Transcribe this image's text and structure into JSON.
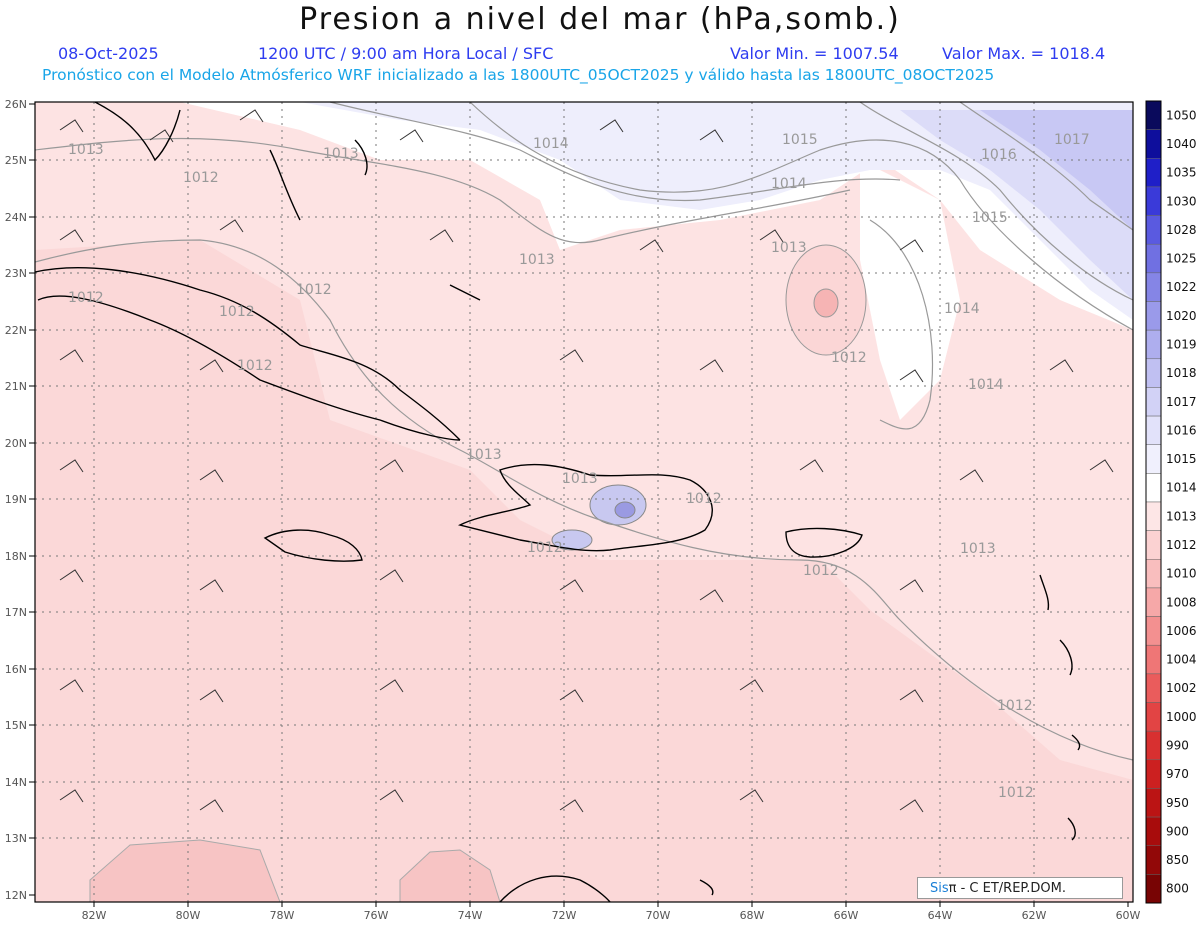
{
  "header": {
    "title": "Presion a nivel del mar (hPa,somb.)",
    "date": "08-Oct-2025",
    "time_info": "1200 UTC / 9:00 am Hora Local / SFC",
    "min_label": "Valor Min. = 1007.54",
    "max_label": "Valor Max. = 1018.4",
    "forecast_info": "Pronóstico con el Modelo Atmósferico WRF inicializado a las 1800UTC_05OCT2025 y válido hasta las  1800UTC_08OCT2025"
  },
  "axes": {
    "lat_labels": [
      "26N",
      "25N",
      "24N",
      "23N",
      "22N",
      "21N",
      "20N",
      "19N",
      "18N",
      "17N",
      "16N",
      "15N",
      "14N",
      "13N",
      "12N"
    ],
    "lon_labels": [
      "82W",
      "80W",
      "78W",
      "76W",
      "74W",
      "72W",
      "70W",
      "68W",
      "66W",
      "64W",
      "62W",
      "60W"
    ]
  },
  "contour_labels": [
    "1013",
    "1013",
    "1012",
    "1012",
    "1012",
    "1012",
    "1013",
    "1014",
    "1015",
    "1014",
    "1013",
    "1012",
    "1016",
    "1017",
    "1015",
    "1014",
    "1014",
    "1013",
    "1012",
    "1012",
    "1012",
    "1013",
    "1012",
    "1012",
    "1013",
    "1012"
  ],
  "colorbar": {
    "labels": [
      "1050",
      "1040",
      "1035",
      "1030",
      "1028",
      "1025",
      "1022",
      "1020",
      "1019",
      "1018",
      "1017",
      "1016",
      "1015",
      "1014",
      "1013",
      "1012",
      "1010",
      "1008",
      "1006",
      "1004",
      "1002",
      "1000",
      "990",
      "970",
      "950",
      "900",
      "850",
      "800"
    ],
    "colors": [
      "#0a0a5c",
      "#0e0e9c",
      "#1f1fc8",
      "#3a3ad9",
      "#5a5ae0",
      "#7070e2",
      "#8585e6",
      "#9a9aea",
      "#aeaeee",
      "#c0c0f2",
      "#d2d2f6",
      "#e2e2fa",
      "#f0f0fd",
      "#ffffff",
      "#fde6e6",
      "#fbd2d2",
      "#f9bebe",
      "#f6a8a8",
      "#f39090",
      "#ef7676",
      "#ea5c5c",
      "#e24444",
      "#d83030",
      "#cc2020",
      "#bb1414",
      "#a80c0c",
      "#920808",
      "#780404"
    ]
  },
  "credit": {
    "prefix": "Sis",
    "rest": "π - C   ET/REP.DOM."
  }
}
